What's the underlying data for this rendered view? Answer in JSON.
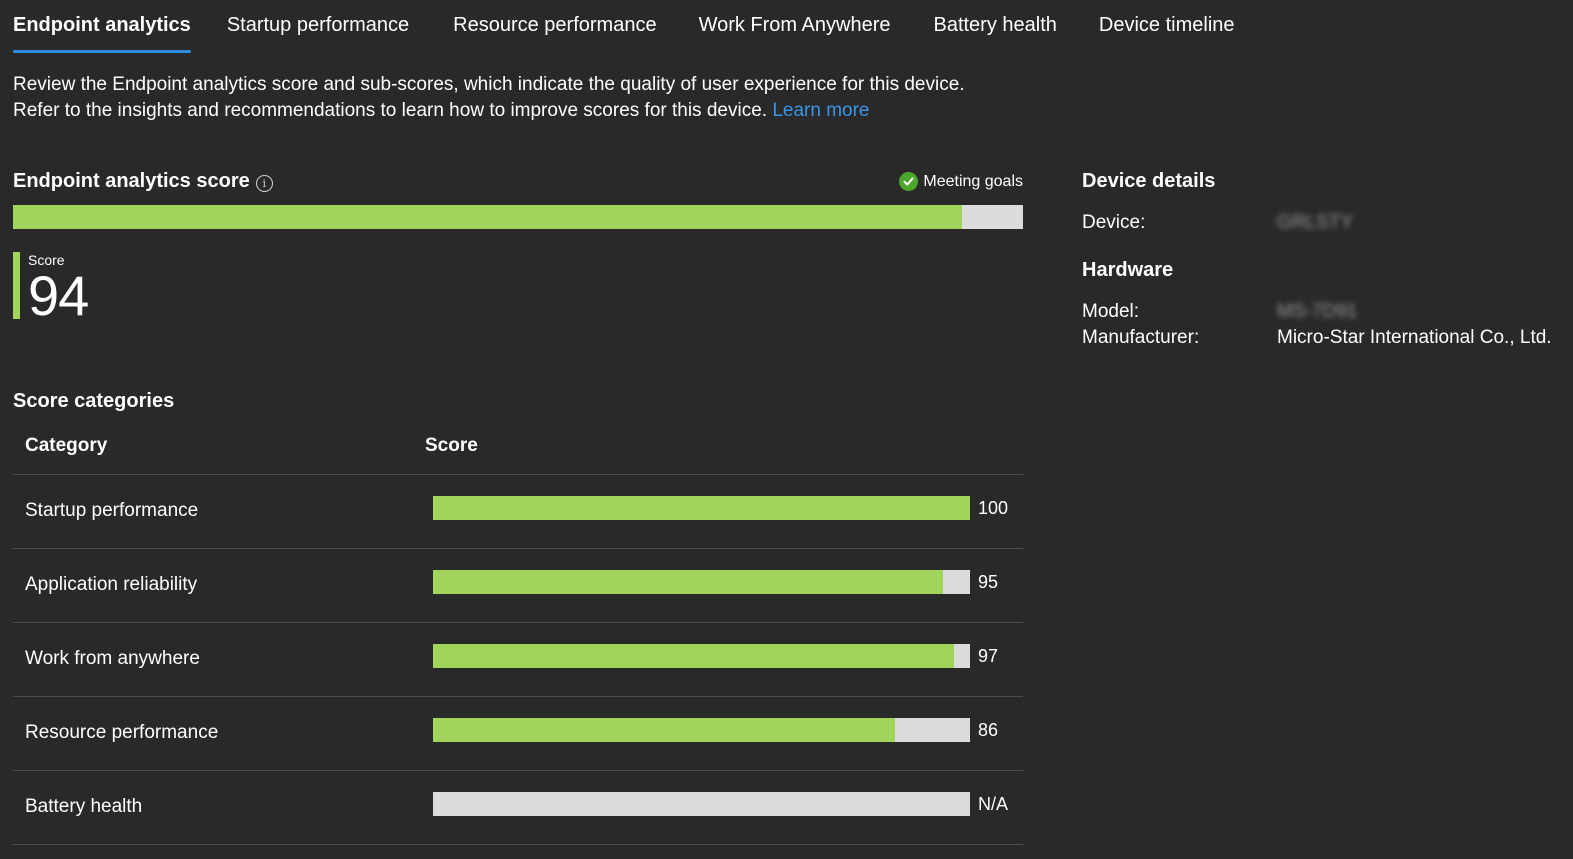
{
  "tabs": [
    {
      "label": "Endpoint analytics",
      "active": true
    },
    {
      "label": "Startup performance",
      "active": false
    },
    {
      "label": "Resource performance",
      "active": false
    },
    {
      "label": "Work From Anywhere",
      "active": false
    },
    {
      "label": "Battery health",
      "active": false
    },
    {
      "label": "Device timeline",
      "active": false
    }
  ],
  "description": {
    "line1": "Review the Endpoint analytics score and sub-scores, which indicate the quality of user experience for this device.",
    "line2": "Refer to the insights and recommendations to learn how to improve scores for this device.",
    "link": "Learn more"
  },
  "score": {
    "title": "Endpoint analytics score",
    "goal_status": "Meeting goals",
    "label": "Score",
    "value": "94",
    "percent": 94
  },
  "categories": {
    "title": "Score categories",
    "col_category": "Category",
    "col_score": "Score",
    "rows": [
      {
        "name": "Startup performance",
        "score": "100",
        "percent": 100
      },
      {
        "name": "Application reliability",
        "score": "95",
        "percent": 95
      },
      {
        "name": "Work from anywhere",
        "score": "97",
        "percent": 97
      },
      {
        "name": "Resource performance",
        "score": "86",
        "percent": 86
      },
      {
        "name": "Battery health",
        "score": "N/A",
        "percent": 0
      }
    ]
  },
  "details": {
    "title": "Device details",
    "device_label": "Device:",
    "device_value": "GRLSTY",
    "hardware_title": "Hardware",
    "model_label": "Model:",
    "model_value": "MS-7D91",
    "manufacturer_label": "Manufacturer:",
    "manufacturer_value": "Micro-Star International Co., Ltd."
  },
  "colors": {
    "background": "#292929",
    "accent": "#2f8de0",
    "link": "#3a96e6",
    "bar_fill": "#a0d45a",
    "bar_track": "#dcdcdc",
    "goal_icon": "#4ea72d"
  }
}
